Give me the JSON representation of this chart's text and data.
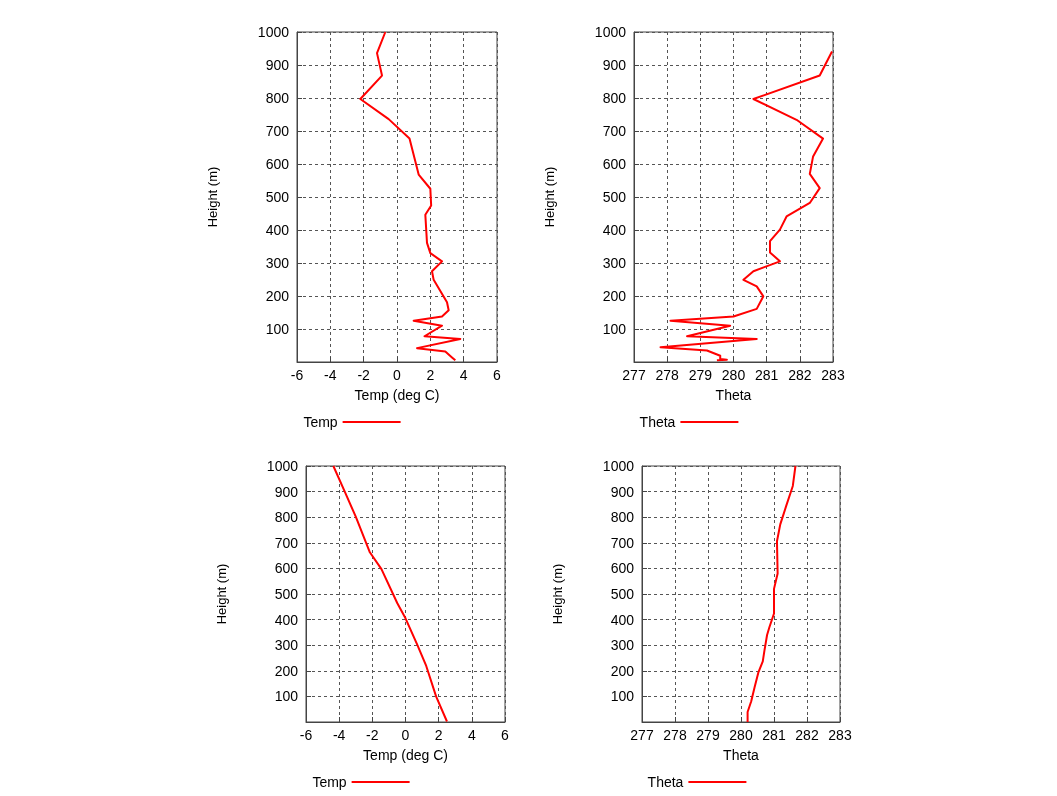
{
  "chart_data": [
    {
      "type": "line",
      "xlabel": "Temp (deg C)",
      "ylabel": "Height (m)",
      "xlim": [
        -6,
        6
      ],
      "xticks": [
        -6,
        -4,
        -2,
        0,
        2,
        4,
        6
      ],
      "ylim": [
        0,
        1000
      ],
      "yticks": [
        100,
        200,
        300,
        400,
        500,
        600,
        700,
        800,
        900,
        1000
      ],
      "grid": true,
      "legend": "bottom",
      "marker": "none",
      "series": [
        {
          "name": "Temp",
          "color": "#ff0000",
          "x": [
            -0.7,
            -1.2,
            -0.9,
            -2.2,
            -0.5,
            0.75,
            1.3,
            2.0,
            2.05,
            1.7,
            1.8,
            2.0,
            2.7,
            2.1,
            2.2,
            3.0,
            3.1,
            2.7,
            1.0,
            2.7,
            1.65,
            3.8,
            1.2,
            2.9,
            3.3,
            3.5
          ],
          "values": [
            1000,
            936,
            868,
            797,
            736,
            677,
            568,
            525,
            474,
            446,
            361,
            330,
            305,
            275,
            249,
            181,
            157,
            138,
            125,
            110,
            78,
            70,
            42,
            32,
            14,
            5
          ]
        }
      ]
    },
    {
      "type": "line",
      "xlabel": "Theta",
      "ylabel": "Height (m)",
      "xlim": [
        277,
        283
      ],
      "xticks": [
        277,
        278,
        279,
        280,
        281,
        282,
        283
      ],
      "ylim": [
        0,
        1000
      ],
      "yticks": [
        100,
        200,
        300,
        400,
        500,
        600,
        700,
        800,
        900,
        1000
      ],
      "grid": true,
      "legend": "bottom",
      "marker": "none",
      "series": [
        {
          "name": "Theta",
          "color": "#ff0000",
          "x": [
            282.97,
            282.6,
            280.6,
            281.9,
            282.7,
            282.4,
            282.3,
            282.6,
            282.3,
            281.6,
            281.4,
            281.1,
            281.1,
            281.4,
            280.6,
            280.3,
            280.7,
            280.9,
            280.7,
            280.0,
            278.1,
            279.9,
            278.6,
            280.7,
            277.8,
            279.2,
            279.6,
            279.6,
            279.8,
            279.5
          ],
          "values": [
            941,
            868,
            797,
            734,
            677,
            623,
            570,
            527,
            482,
            441,
            401,
            366,
            332,
            305,
            275,
            249,
            229,
            199,
            161,
            138,
            125,
            110,
            78,
            70,
            45,
            35,
            19,
            9,
            7,
            5
          ]
        }
      ]
    },
    {
      "type": "line",
      "xlabel": "Temp (deg C)",
      "ylabel": "Height (m)",
      "xlim": [
        -6,
        6
      ],
      "xticks": [
        -6,
        -4,
        -2,
        0,
        2,
        4,
        6
      ],
      "ylim": [
        0,
        1000
      ],
      "yticks": [
        100,
        200,
        300,
        400,
        500,
        600,
        700,
        800,
        900,
        1000
      ],
      "grid": true,
      "legend": "bottom",
      "marker": "none",
      "series": [
        {
          "name": "Temp",
          "color": "#ff0000",
          "x": [
            -4.35,
            -3.65,
            -3.0,
            -2.15,
            -1.45,
            -0.5,
            0,
            0.7,
            1.25,
            1.85,
            2.5
          ],
          "values": [
            1000,
            898,
            802,
            663,
            597,
            465,
            405,
            303,
            219,
            99,
            2
          ]
        }
      ]
    },
    {
      "type": "line",
      "xlabel": "Theta",
      "ylabel": "Height (m)",
      "xlim": [
        277,
        283
      ],
      "xticks": [
        277,
        278,
        279,
        280,
        281,
        282,
        283
      ],
      "ylim": [
        0,
        1000
      ],
      "yticks": [
        100,
        200,
        300,
        400,
        500,
        600,
        700,
        800,
        900,
        1000
      ],
      "grid": true,
      "legend": "bottom",
      "marker": "none",
      "series": [
        {
          "name": "Theta",
          "color": "#ff0000",
          "x": [
            281.65,
            281.57,
            281.37,
            281.19,
            281.09,
            281.11,
            281.0,
            281.0,
            280.86,
            280.79,
            280.71,
            280.66,
            280.53,
            280.41,
            280.31,
            280.2,
            280.2
          ],
          "values": [
            1000,
            922,
            844,
            772,
            706,
            580,
            520,
            424,
            370,
            340,
            279,
            237,
            195,
            135,
            81,
            39,
            0
          ]
        }
      ]
    }
  ]
}
